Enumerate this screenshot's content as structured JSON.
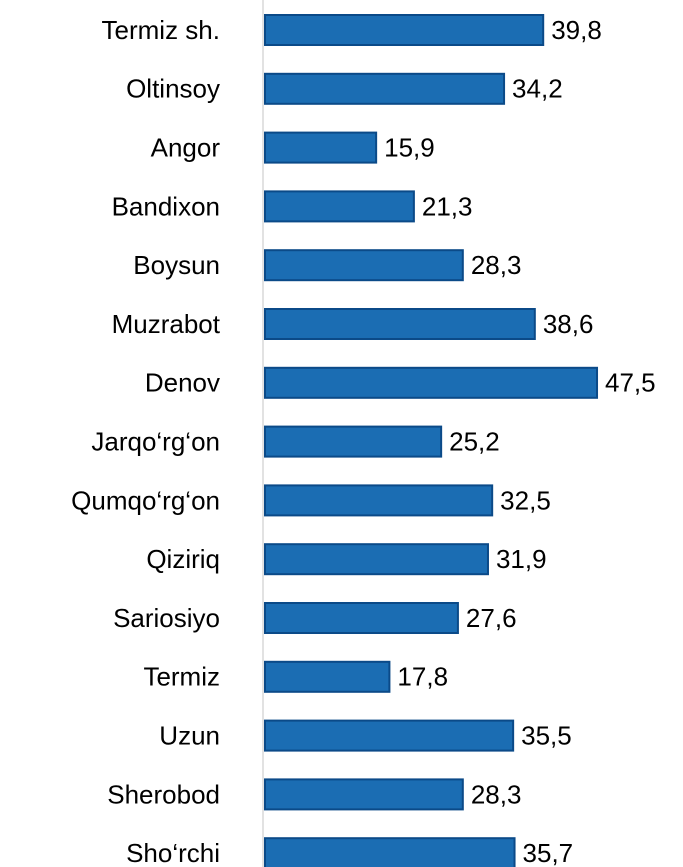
{
  "chart_data": {
    "type": "bar",
    "orientation": "horizontal",
    "categories": [
      "Termiz sh.",
      "Oltinsoy",
      "Angor",
      "Bandixon",
      "Boysun",
      "Muzrabot",
      "Denov",
      "Jarqo‘rg‘on",
      "Qumqo‘rg‘on",
      "Qiziriq",
      "Sariosiyo",
      "Termiz",
      "Uzun",
      "Sherobod",
      "Sho‘rchi"
    ],
    "values": [
      39.8,
      34.2,
      15.9,
      21.3,
      28.3,
      38.6,
      47.5,
      25.2,
      32.5,
      31.9,
      27.6,
      17.8,
      35.5,
      28.3,
      35.7
    ],
    "value_labels": [
      "39,8",
      "34,2",
      "15,9",
      "21,3",
      "28,3",
      "38,6",
      "47,5",
      "25,2",
      "32,5",
      "31,9",
      "27,6",
      "17,8",
      "35,5",
      "28,3",
      "35,7"
    ],
    "color": "#1b6db3",
    "border_color": "#0b4a88",
    "xlim": [
      0,
      50
    ]
  }
}
